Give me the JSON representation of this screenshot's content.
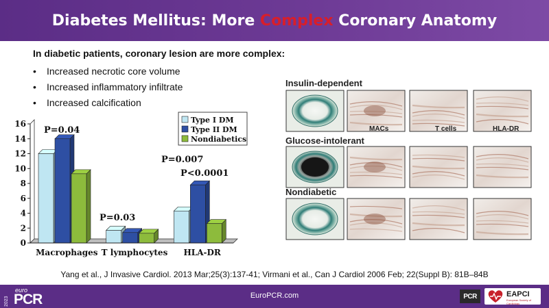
{
  "slide": {
    "title_before": "Diabetes Mellitus: More ",
    "title_highlight": "Complex",
    "title_after": " Coronary Anatomy",
    "intro": "In diabetic patients, coronary lesion are more complex:",
    "bullets": [
      "Increased necrotic core volume",
      "Increased inflammatory infiltrate",
      "Increased calcification"
    ],
    "citation": "Yang et al., J Invasive Cardiol. 2013 Mar;25(3):137-41; Virmani et al., Can J Cardiol 2006 Feb; 22(Suppl B): 81B–84B",
    "colors": {
      "header": "#5b2d86",
      "highlight": "#d81e2a"
    }
  },
  "chart_data": {
    "type": "bar",
    "categories": [
      "Macrophages",
      "T lymphocytes",
      "HLA-DR"
    ],
    "series": [
      {
        "name": "Type I DM",
        "values": [
          12,
          1.7,
          4.3
        ],
        "color": "#bfe6f2"
      },
      {
        "name": "Type II DM",
        "values": [
          14,
          1.4,
          7.8
        ],
        "color": "#2e4fa3"
      },
      {
        "name": "Nondiabetics",
        "values": [
          9.3,
          1.3,
          2.6
        ],
        "color": "#8dbb3c"
      }
    ],
    "ylim": [
      0,
      16
    ],
    "yticks": [
      "0",
      "2",
      "4",
      "6",
      "8",
      "10",
      "12",
      "14",
      "16"
    ],
    "annotations": [
      "P=0.04",
      "P=0.03",
      "P=0.007",
      "P<0.0001"
    ],
    "legend_position": "top-right",
    "grid": false,
    "style": "3d"
  },
  "histology": {
    "rows": [
      {
        "label": "Insulin-dependent",
        "tags": [
          "",
          "MACs",
          "T cells",
          "HLA-DR"
        ]
      },
      {
        "label": "Glucose-intolerant",
        "tags": [
          "",
          "",
          "",
          ""
        ]
      },
      {
        "label": "Nondiabetic",
        "tags": [
          "",
          "",
          "",
          ""
        ]
      }
    ]
  },
  "footer": {
    "year": "2023",
    "logo_small": "euro",
    "logo_big": "PCR",
    "site": "EuroPCR.com",
    "badge": "PCR",
    "eapci": "EAPCI",
    "eapci_sub": "European Society of Cardiology"
  }
}
